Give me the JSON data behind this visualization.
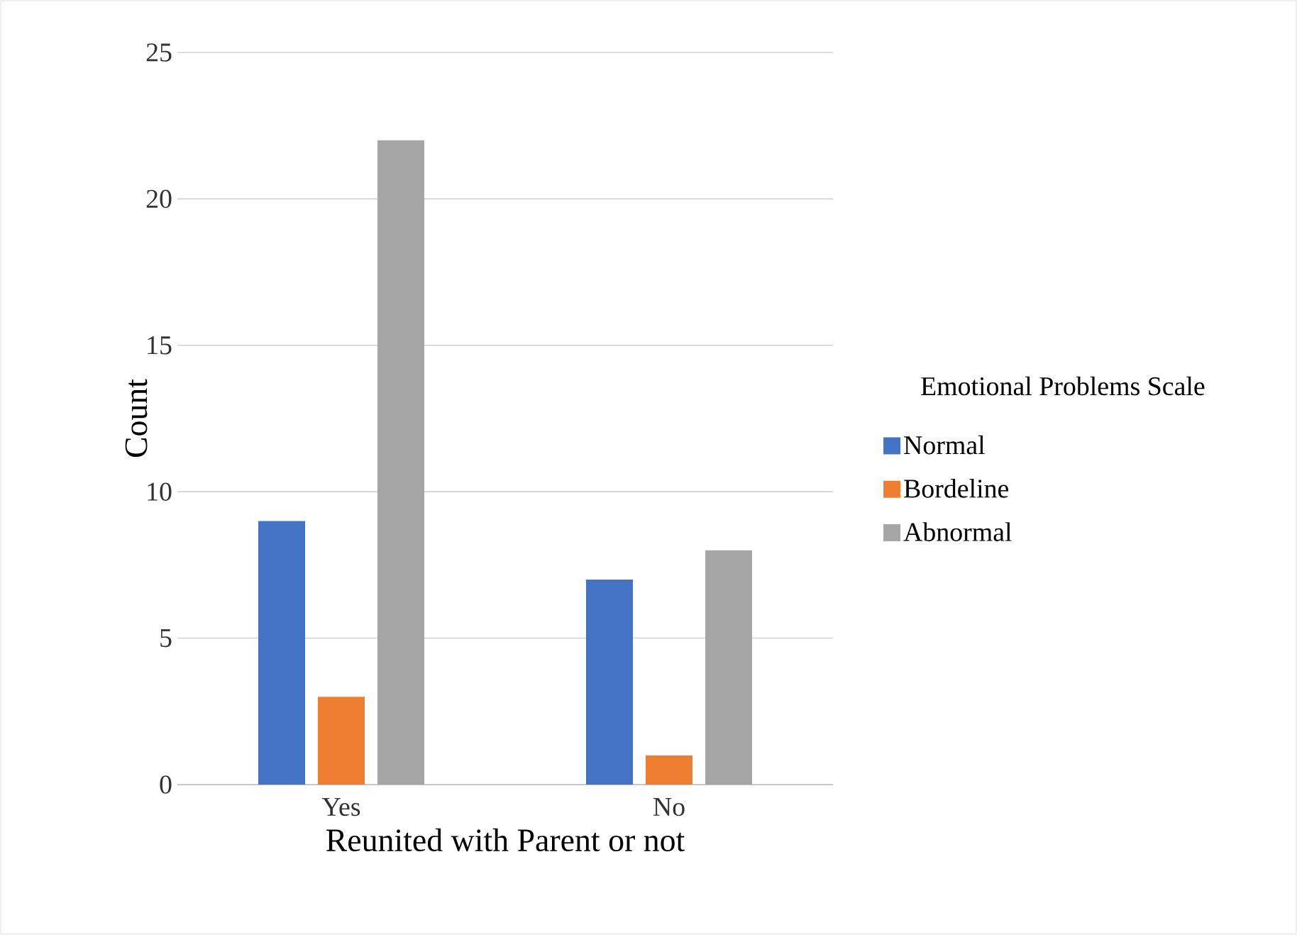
{
  "chart_data": {
    "type": "bar",
    "xlabel": "Reunited with Parent or not",
    "ylabel": "Count",
    "legend_title": "Emotional Problems Scale",
    "categories": [
      "Yes",
      "No"
    ],
    "series": [
      {
        "name": "Normal",
        "color": "#4472c4",
        "values": [
          9,
          7
        ]
      },
      {
        "name": "Bordeline",
        "color": "#ed7d31",
        "values": [
          3,
          1
        ]
      },
      {
        "name": "Abnormal",
        "color": "#a5a5a5",
        "values": [
          22,
          8
        ]
      }
    ],
    "ylim": [
      0,
      25
    ],
    "yticks": [
      0,
      5,
      10,
      15,
      20,
      25
    ],
    "grid": "y",
    "legend": "right"
  }
}
